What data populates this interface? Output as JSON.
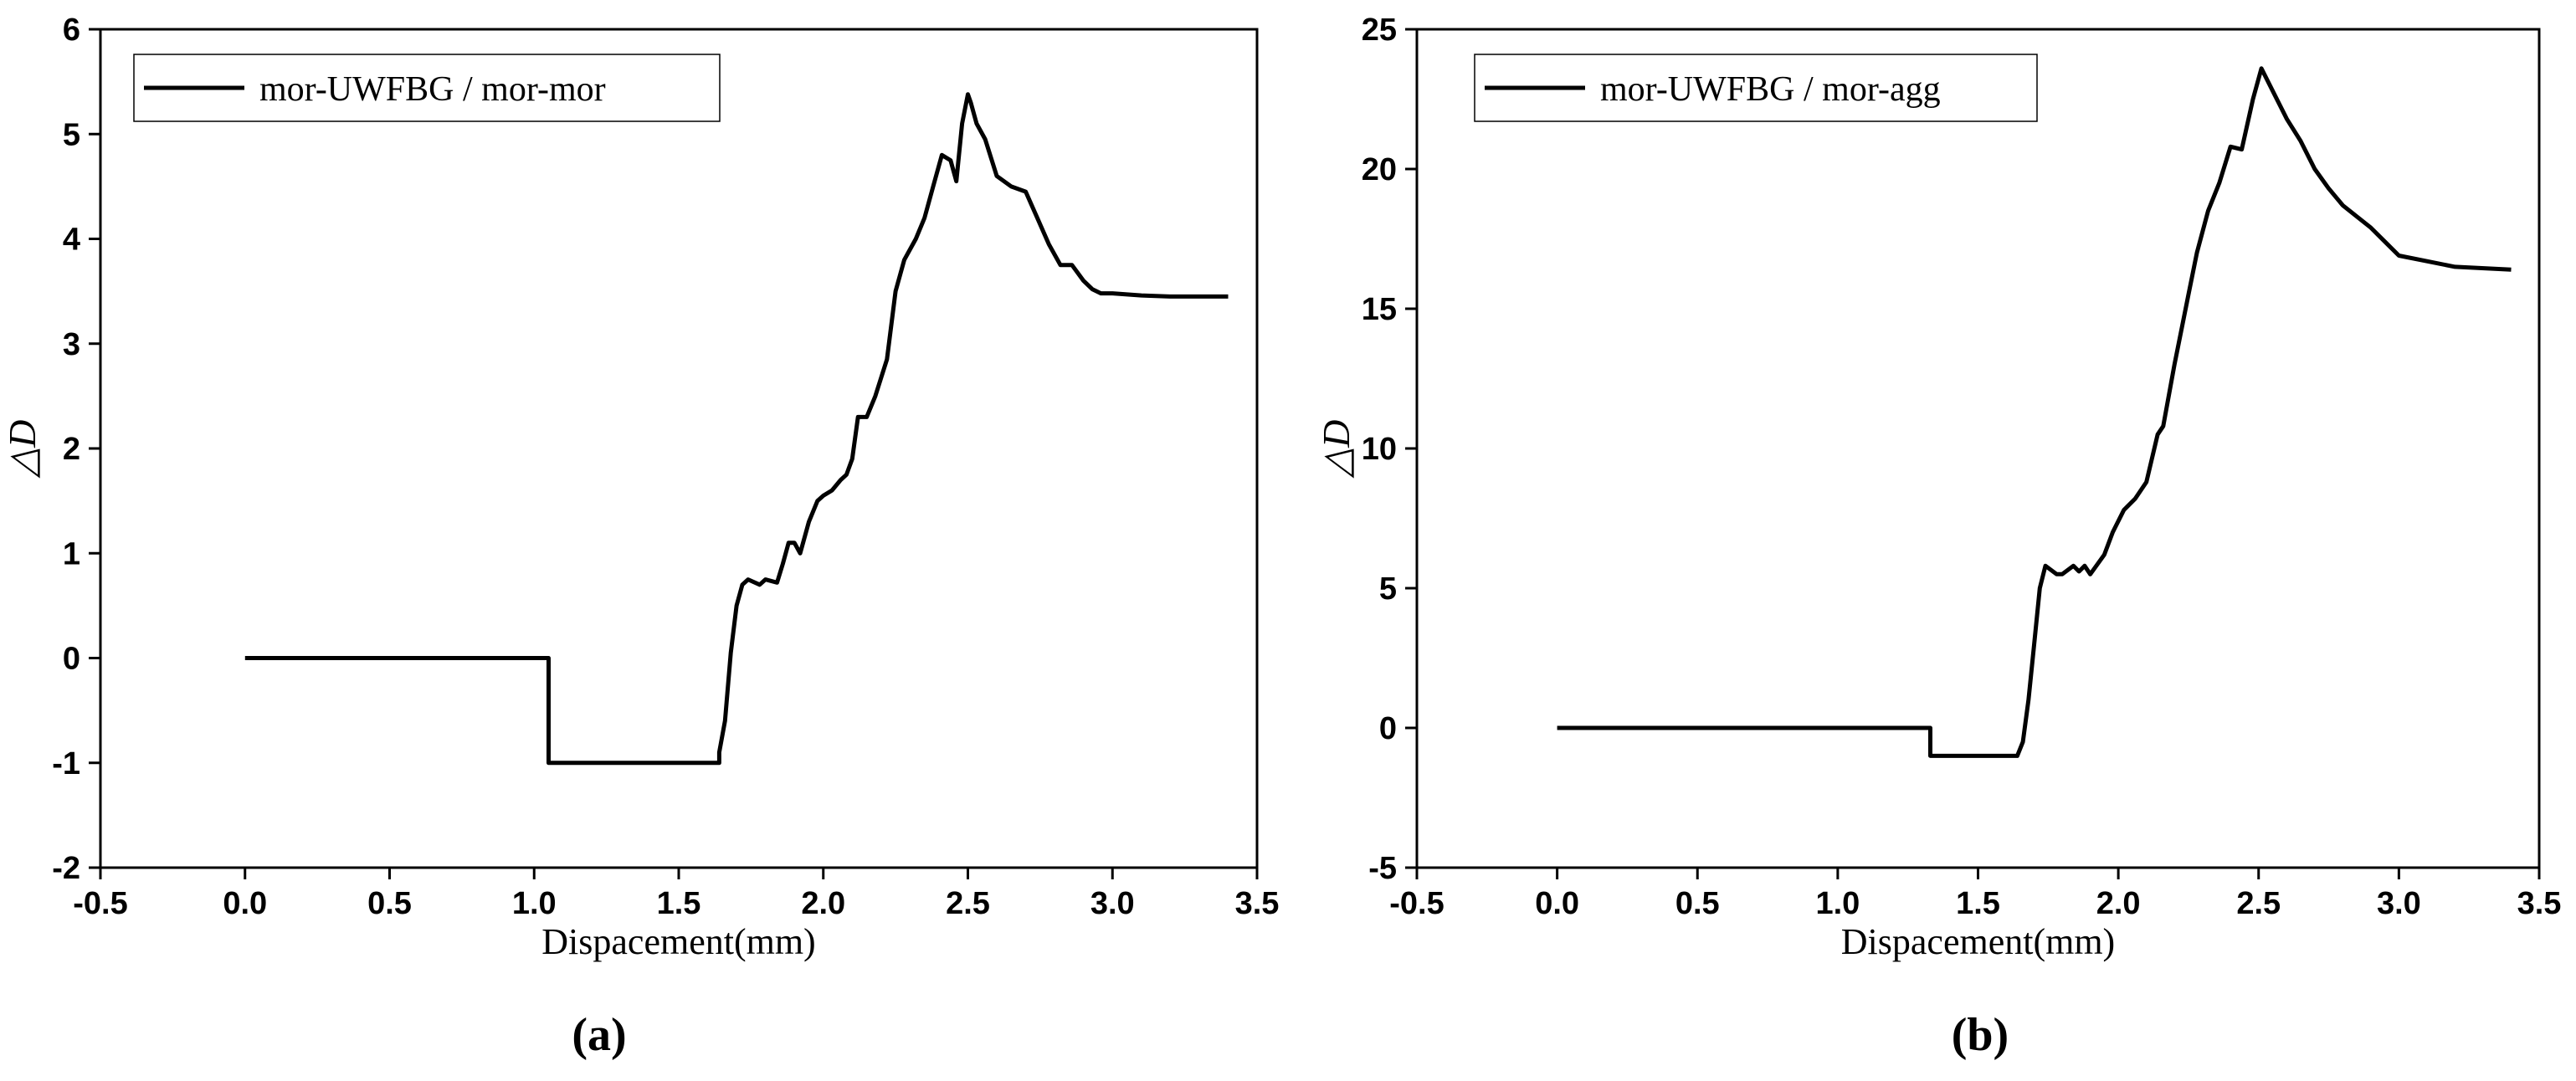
{
  "chart_data": [
    {
      "type": "line",
      "panel_label": "(a)",
      "xlabel": "Dispacement(mm)",
      "ylabel": "△D",
      "xlim": [
        -0.5,
        3.5
      ],
      "ylim": [
        -2,
        6
      ],
      "xticks": [
        "-0.5",
        "0.0",
        "0.5",
        "1.0",
        "1.5",
        "2.0",
        "2.5",
        "3.0",
        "3.5"
      ],
      "yticks": [
        "-2",
        "-1",
        "0",
        "1",
        "2",
        "3",
        "4",
        "5",
        "6"
      ],
      "legend_position": "top-left",
      "grid": false,
      "series": [
        {
          "name": "mor-UWFBG / mor-mor",
          "color": "#000000",
          "x": [
            0.0,
            1.05,
            1.05,
            1.64,
            1.64,
            1.66,
            1.68,
            1.7,
            1.72,
            1.74,
            1.78,
            1.8,
            1.84,
            1.86,
            1.88,
            1.9,
            1.92,
            1.95,
            1.98,
            2.0,
            2.03,
            2.06,
            2.08,
            2.1,
            2.12,
            2.15,
            2.18,
            2.22,
            2.25,
            2.28,
            2.32,
            2.35,
            2.38,
            2.41,
            2.44,
            2.46,
            2.48,
            2.5,
            2.51,
            2.53,
            2.56,
            2.6,
            2.65,
            2.7,
            2.74,
            2.78,
            2.82,
            2.86,
            2.9,
            2.93,
            2.96,
            3.0,
            3.1,
            3.2,
            3.4
          ],
          "y": [
            0.0,
            0.0,
            -1.0,
            -1.0,
            -0.9,
            -0.6,
            0.05,
            0.5,
            0.7,
            0.75,
            0.7,
            0.75,
            0.72,
            0.9,
            1.1,
            1.1,
            1.0,
            1.3,
            1.5,
            1.55,
            1.6,
            1.7,
            1.75,
            1.9,
            2.3,
            2.3,
            2.5,
            2.85,
            3.5,
            3.8,
            4.0,
            4.2,
            4.5,
            4.8,
            4.75,
            4.55,
            5.1,
            5.38,
            5.3,
            5.1,
            4.95,
            4.6,
            4.5,
            4.45,
            4.2,
            3.95,
            3.75,
            3.75,
            3.6,
            3.52,
            3.48,
            3.48,
            3.46,
            3.45,
            3.45
          ]
        }
      ]
    },
    {
      "type": "line",
      "panel_label": "(b)",
      "xlabel": "Dispacement(mm)",
      "ylabel": "△D",
      "xlim": [
        -0.5,
        3.5
      ],
      "ylim": [
        -5,
        25
      ],
      "xticks": [
        "-0.5",
        "0.0",
        "0.5",
        "1.0",
        "1.5",
        "2.0",
        "2.5",
        "3.0",
        "3.5"
      ],
      "yticks": [
        "-5",
        "0",
        "5",
        "10",
        "15",
        "20",
        "25"
      ],
      "legend_position": "top-left",
      "grid": false,
      "series": [
        {
          "name": "mor-UWFBG / mor-agg",
          "color": "#000000",
          "x": [
            0.0,
            1.33,
            1.33,
            1.64,
            1.66,
            1.68,
            1.7,
            1.72,
            1.74,
            1.78,
            1.8,
            1.84,
            1.86,
            1.88,
            1.9,
            1.95,
            1.98,
            2.02,
            2.06,
            2.1,
            2.14,
            2.16,
            2.2,
            2.25,
            2.28,
            2.32,
            2.36,
            2.4,
            2.44,
            2.48,
            2.51,
            2.53,
            2.56,
            2.6,
            2.65,
            2.7,
            2.75,
            2.8,
            2.85,
            2.9,
            2.95,
            3.0,
            3.1,
            3.2,
            3.4
          ],
          "y": [
            0.0,
            0.0,
            -1.0,
            -1.0,
            -0.5,
            1.0,
            3.0,
            5.0,
            5.8,
            5.5,
            5.5,
            5.8,
            5.6,
            5.8,
            5.5,
            6.2,
            7.0,
            7.8,
            8.2,
            8.8,
            10.5,
            10.8,
            13.0,
            15.5,
            17.0,
            18.5,
            19.5,
            20.8,
            20.7,
            22.5,
            23.6,
            23.2,
            22.6,
            21.8,
            21.0,
            20.0,
            19.3,
            18.7,
            18.3,
            17.9,
            17.4,
            16.9,
            16.7,
            16.5,
            16.4
          ]
        }
      ]
    }
  ]
}
